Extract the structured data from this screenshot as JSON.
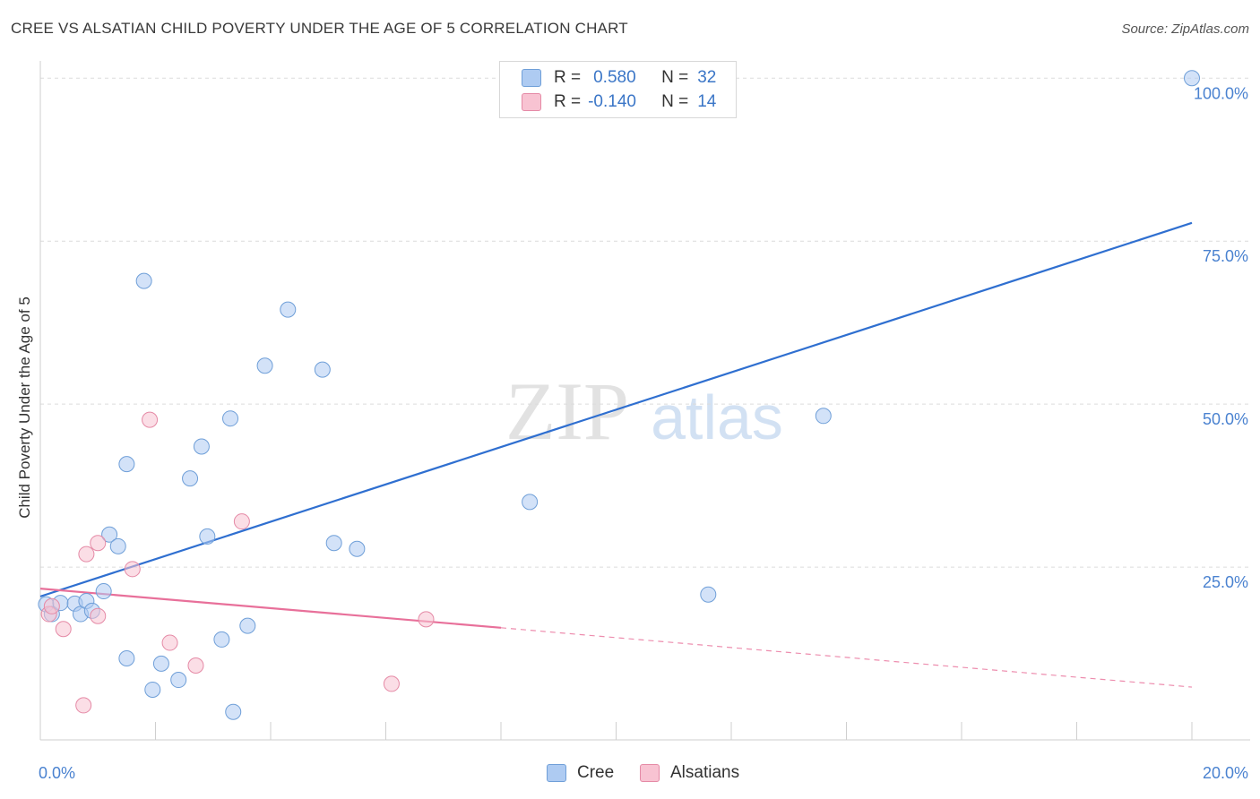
{
  "title": "CREE VS ALSATIAN CHILD POVERTY UNDER THE AGE OF 5 CORRELATION CHART",
  "source": "Source: ZipAtlas.com",
  "watermark": {
    "zip": "ZIP",
    "atlas": "atlas"
  },
  "legend": {
    "rows": [
      {
        "r_label": "R =",
        "r_value": "0.580",
        "n_label": "N =",
        "n_value": "32",
        "color": "#aecbf2",
        "border": "#6f9fd8"
      },
      {
        "r_label": "R =",
        "r_value": "-0.140",
        "n_label": "N =",
        "n_value": "14",
        "color": "#f8c3d2",
        "border": "#e58aa6"
      }
    ]
  },
  "chart_data": {
    "type": "scatter",
    "title": "CREE VS ALSATIAN CHILD POVERTY UNDER THE AGE OF 5 CORRELATION CHART",
    "xlabel": "",
    "ylabel": "Child Poverty Under the Age of 5",
    "xlim": [
      0,
      20
    ],
    "ylim": [
      -1.5,
      101
    ],
    "x_tick_labels": [
      "0.0%",
      "20.0%"
    ],
    "y_ticks": [
      25,
      50,
      75,
      100
    ],
    "y_tick_labels": [
      "25.0%",
      "50.0%",
      "75.0%",
      "100.0%"
    ],
    "series": [
      {
        "name": "Cree",
        "color": "#aecbf2",
        "stroke": "#6f9fd8",
        "line_color": "#2f6fd0",
        "points": [
          [
            0.1,
            19.3
          ],
          [
            0.2,
            17.8
          ],
          [
            0.35,
            19.5
          ],
          [
            0.6,
            19.4
          ],
          [
            0.7,
            17.8
          ],
          [
            0.8,
            19.8
          ],
          [
            0.9,
            18.3
          ],
          [
            1.1,
            21.3
          ],
          [
            1.2,
            30.0
          ],
          [
            1.35,
            28.2
          ],
          [
            1.5,
            11.0
          ],
          [
            1.5,
            40.8
          ],
          [
            1.8,
            68.9
          ],
          [
            1.95,
            6.2
          ],
          [
            2.1,
            10.2
          ],
          [
            2.4,
            7.7
          ],
          [
            2.6,
            38.6
          ],
          [
            2.8,
            43.5
          ],
          [
            2.9,
            29.7
          ],
          [
            3.15,
            13.9
          ],
          [
            3.3,
            47.8
          ],
          [
            3.35,
            2.8
          ],
          [
            3.6,
            16.0
          ],
          [
            3.9,
            55.9
          ],
          [
            4.3,
            64.5
          ],
          [
            4.9,
            55.3
          ],
          [
            5.1,
            28.7
          ],
          [
            5.5,
            27.8
          ],
          [
            8.5,
            35.0
          ],
          [
            11.6,
            20.8
          ],
          [
            13.6,
            48.2
          ],
          [
            20.0,
            100.0
          ]
        ],
        "trend": {
          "x": [
            0,
            20
          ],
          "y": [
            20.5,
            77.8
          ]
        }
      },
      {
        "name": "Alsatians",
        "color": "#f8c3d2",
        "stroke": "#e58aa6",
        "line_color": "#e8709a",
        "points": [
          [
            0.15,
            17.8
          ],
          [
            0.4,
            15.5
          ],
          [
            0.8,
            27.0
          ],
          [
            1.0,
            17.5
          ],
          [
            1.0,
            28.7
          ],
          [
            0.75,
            3.8
          ],
          [
            1.6,
            24.7
          ],
          [
            1.9,
            47.6
          ],
          [
            2.25,
            13.4
          ],
          [
            2.7,
            9.9
          ],
          [
            3.5,
            32.0
          ],
          [
            6.1,
            7.1
          ],
          [
            6.7,
            17.0
          ],
          [
            0.2,
            19.0
          ]
        ],
        "trend": {
          "x": [
            0,
            8
          ],
          "y": [
            21.7,
            15.7
          ]
        },
        "trend_dashed": {
          "x": [
            8,
            20
          ],
          "y": [
            15.7,
            6.6
          ]
        }
      }
    ],
    "grid": true,
    "legend_position": "top-center"
  }
}
